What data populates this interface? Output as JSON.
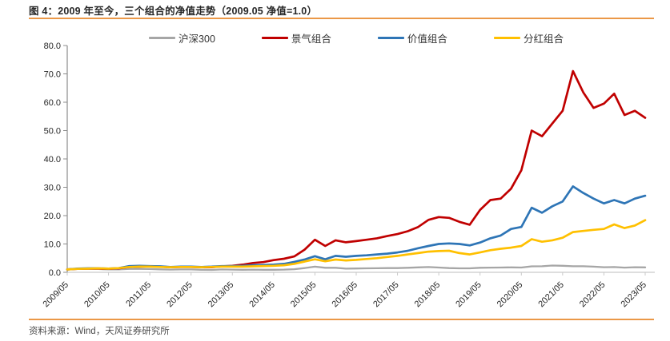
{
  "figure": {
    "title": "图 4：2009 年至今，三个组合的净值走势（2009.05 净值=1.0）",
    "source": "资料来源：Wind，天风证券研究所"
  },
  "colors": {
    "rule_orange": "#eb9847",
    "axis_left": "#8c8c8c",
    "axis_bottom": "#c9c9c9",
    "tick_label": "#262626"
  },
  "chart_data": {
    "type": "line",
    "title": "2009 年至今，三个组合的净值走势（2009.05 净值=1.0）",
    "xlabel": "",
    "ylabel": "",
    "ylim": [
      0,
      80
    ],
    "y_ticks": [
      0,
      10,
      20,
      30,
      40,
      50,
      60,
      70,
      80
    ],
    "y_tick_labels": [
      "0.0",
      "10.0",
      "20.0",
      "30.0",
      "40.0",
      "50.0",
      "60.0",
      "70.0",
      "80.0"
    ],
    "x_tick_labels": [
      "2009/05",
      "2010/05",
      "2011/05",
      "2012/05",
      "2013/05",
      "2014/05",
      "2015/05",
      "2016/05",
      "2017/05",
      "2018/05",
      "2019/05",
      "2020/05",
      "2021/05",
      "2022/05",
      "2023/05"
    ],
    "x_start": "2009/05",
    "x_end": "2023/05",
    "points_per_year": 4,
    "grid": false,
    "legend_position": "top",
    "series": [
      {
        "key": "hs300",
        "name": "沪深300",
        "color": "#a6a6a6",
        "values": [
          1.0,
          1.25,
          1.2,
          1.15,
          1.0,
          1.05,
          1.2,
          1.2,
          1.15,
          1.05,
          0.95,
          1.0,
          1.0,
          0.9,
          0.85,
          1.0,
          0.95,
          0.9,
          0.95,
          0.9,
          0.9,
          0.95,
          1.1,
          1.5,
          2.0,
          1.6,
          1.6,
          1.3,
          1.35,
          1.4,
          1.45,
          1.5,
          1.5,
          1.6,
          1.75,
          1.85,
          1.7,
          1.5,
          1.4,
          1.4,
          1.6,
          1.65,
          1.7,
          1.75,
          1.7,
          2.1,
          2.15,
          2.4,
          2.3,
          2.15,
          2.15,
          2.0,
          1.8,
          1.85,
          1.65,
          1.8,
          1.75
        ]
      },
      {
        "key": "jingqi",
        "name": "景气组合",
        "color": "#c00000",
        "values": [
          1.0,
          1.2,
          1.3,
          1.3,
          1.2,
          1.4,
          1.9,
          2.0,
          2.1,
          2.0,
          1.8,
          1.9,
          1.9,
          1.8,
          1.8,
          2.1,
          2.3,
          2.7,
          3.3,
          3.6,
          4.3,
          4.8,
          5.6,
          8.0,
          11.5,
          9.3,
          11.3,
          10.6,
          11.0,
          11.5,
          12.0,
          12.8,
          13.5,
          14.5,
          16.0,
          18.5,
          19.5,
          19.2,
          17.8,
          16.8,
          22.0,
          25.5,
          26.0,
          29.5,
          36.0,
          50.0,
          48.0,
          52.5,
          57.0,
          71.0,
          63.5,
          58.0,
          59.5,
          63.0,
          55.5,
          57.0,
          54.5
        ]
      },
      {
        "key": "jiazhi",
        "name": "价值组合",
        "color": "#2e75b6",
        "values": [
          1.0,
          1.3,
          1.4,
          1.4,
          1.3,
          1.5,
          2.2,
          2.3,
          2.2,
          2.1,
          1.9,
          2.0,
          2.0,
          1.9,
          2.0,
          2.2,
          2.2,
          2.3,
          2.5,
          2.6,
          2.7,
          3.0,
          3.7,
          4.5,
          5.7,
          4.6,
          5.8,
          5.5,
          5.8,
          6.0,
          6.3,
          6.6,
          7.0,
          7.6,
          8.5,
          9.3,
          10.0,
          10.2,
          10.0,
          9.5,
          10.5,
          12.0,
          13.0,
          15.3,
          16.0,
          22.8,
          21.0,
          23.3,
          25.0,
          30.3,
          28.0,
          26.0,
          24.3,
          25.5,
          24.3,
          26.0,
          27.0
        ]
      },
      {
        "key": "fenhong",
        "name": "分红组合",
        "color": "#ffc000",
        "values": [
          1.0,
          1.2,
          1.3,
          1.4,
          1.3,
          1.5,
          1.9,
          2.0,
          2.0,
          1.9,
          1.8,
          1.9,
          1.9,
          1.8,
          1.9,
          2.0,
          2.0,
          2.0,
          2.1,
          2.2,
          2.3,
          2.5,
          3.0,
          3.8,
          4.6,
          3.9,
          4.5,
          4.2,
          4.4,
          4.7,
          5.0,
          5.4,
          5.8,
          6.3,
          6.8,
          7.3,
          7.5,
          7.6,
          6.8,
          6.3,
          7.0,
          7.8,
          8.3,
          8.7,
          9.3,
          11.7,
          10.8,
          11.3,
          12.2,
          14.2,
          14.6,
          15.0,
          15.3,
          16.9,
          15.6,
          16.5,
          18.4
        ]
      }
    ]
  }
}
